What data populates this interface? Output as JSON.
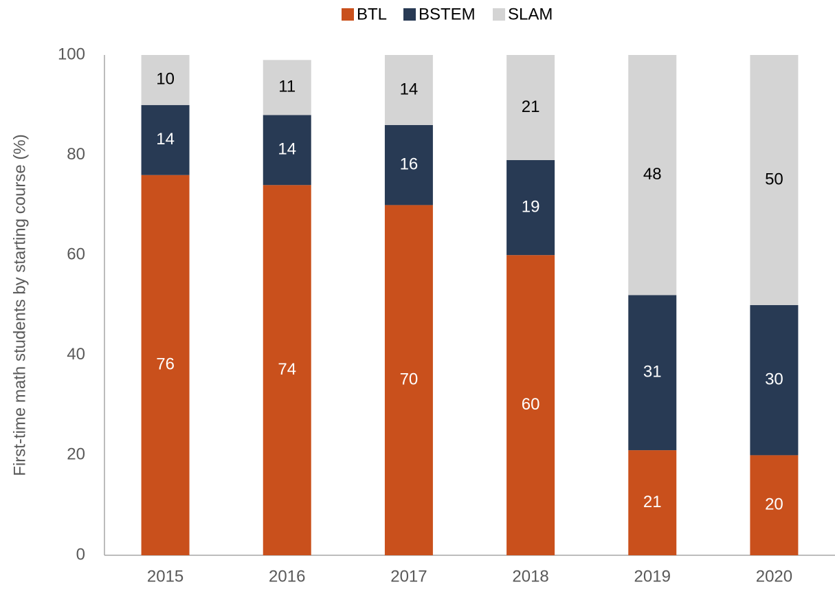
{
  "chart_data": {
    "type": "stacked_bar",
    "y_axis_label": "First-time math students by starting course (%)",
    "categories": [
      "2015",
      "2016",
      "2017",
      "2018",
      "2019",
      "2020"
    ],
    "series": [
      {
        "name": "BTL",
        "color": "#c9501c",
        "label_color": "#ffffff",
        "values": [
          76,
          74,
          70,
          60,
          21,
          20
        ]
      },
      {
        "name": "BSTEM",
        "color": "#283a54",
        "label_color": "#ffffff",
        "values": [
          14,
          14,
          16,
          19,
          31,
          30
        ]
      },
      {
        "name": "SLAM",
        "color": "#d4d4d4",
        "label_color": "#000000",
        "values": [
          10,
          11,
          14,
          21,
          48,
          50
        ]
      }
    ],
    "ylim": [
      0,
      100
    ],
    "yticks": [
      0,
      20,
      40,
      60,
      80,
      100
    ],
    "grid": false,
    "legend": "top"
  }
}
